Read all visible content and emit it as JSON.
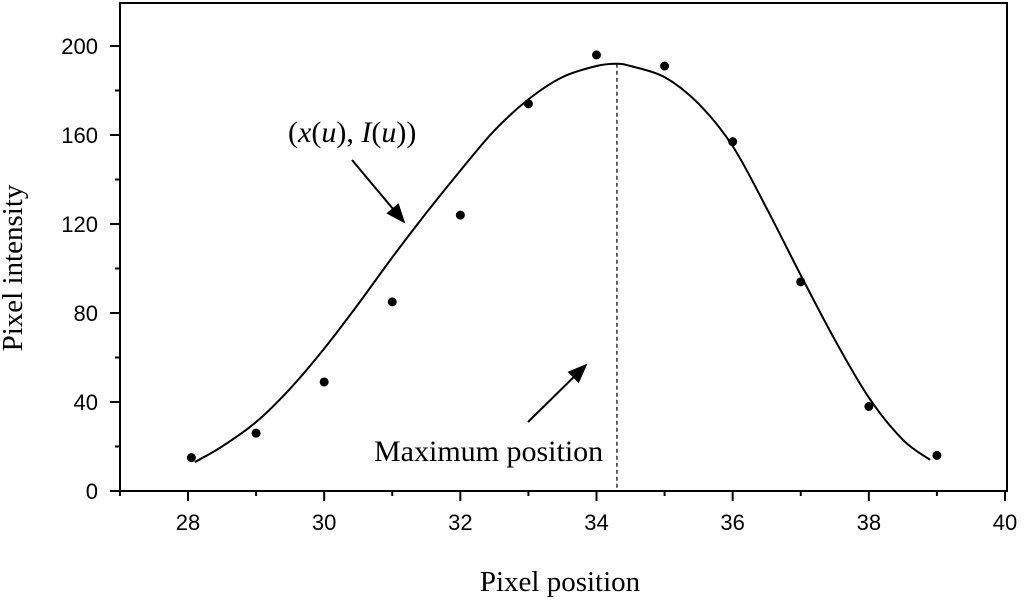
{
  "chart_data": {
    "type": "scatter",
    "title": "",
    "xlabel": "Pixel position",
    "ylabel": "Pixel intensity",
    "xlim": [
      27,
      40
    ],
    "ylim": [
      0,
      220
    ],
    "xticks": [
      28,
      30,
      32,
      34,
      36,
      38,
      40
    ],
    "yticks": [
      0,
      40,
      80,
      120,
      160,
      200
    ],
    "grid": false,
    "series": [
      {
        "kind": "points",
        "x": [
          28.05,
          29,
          30,
          31,
          32,
          33,
          34,
          35,
          36,
          37,
          38,
          39
        ],
        "y": [
          15,
          26,
          49,
          85,
          124,
          174,
          196,
          191,
          157,
          94,
          38,
          16
        ]
      },
      {
        "kind": "fitted-curve",
        "x": [
          28.1,
          28.5,
          29,
          29.5,
          30,
          30.5,
          31,
          31.5,
          32,
          32.5,
          33,
          33.5,
          34,
          34.3,
          34.5,
          35,
          35.5,
          36,
          36.5,
          37,
          37.5,
          38,
          38.5,
          38.9
        ],
        "y": [
          13,
          20,
          31,
          46,
          64,
          84,
          105,
          125,
          144,
          162,
          176,
          186,
          191,
          192,
          191,
          186,
          174,
          155,
          127,
          97,
          68,
          42,
          23,
          14
        ]
      }
    ],
    "max_position_x": 34.3,
    "annotations": {
      "curve_label_parts": [
        "(",
        "x",
        "(",
        "u",
        "), ",
        "I",
        "(",
        "u",
        "))"
      ],
      "max_label": "Maximum position"
    }
  }
}
